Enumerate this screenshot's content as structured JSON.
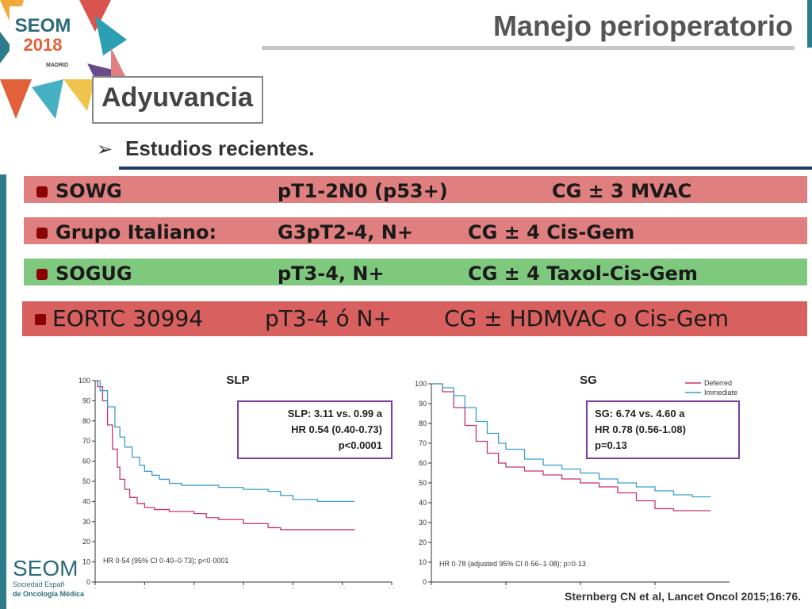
{
  "header": {
    "title": "Manejo perioperatorio",
    "logo_text": "SEOM",
    "logo_year": "2018",
    "logo_city": "MADRID"
  },
  "section": {
    "heading": "Adyuvancia",
    "bullet": "Estudios recientes."
  },
  "trials": [
    {
      "name": "SOWG",
      "population": "pT1-2N0 (p53+)",
      "arms": "CG ± 3 MVAC"
    },
    {
      "name": "Grupo Italiano:",
      "population": "G3pT2-4, N+",
      "arms": "CG ± 4 Cis-Gem"
    },
    {
      "name": "SOGUG",
      "population": "pT3-4, N+",
      "arms": "CG ± 4 Taxol-Cis-Gem"
    },
    {
      "name": "EORTC 30994",
      "population": "pT3-4 ó N+",
      "arms": "CG ± HDMVAC o Cis-Gem"
    }
  ],
  "colors": {
    "deferred": "#c8336e",
    "immediate": "#3b9dd0",
    "band_red": "#e07f7f",
    "band_green": "#7fc97f",
    "band_eortc": "#d8605e",
    "box_border": "#7a3fa0"
  },
  "footer": {
    "reference": "Sternberg CN et al, Lancet Oncol 2015;16:76.",
    "seom_logo": "SEOM",
    "seom_line1": "Sociedad Españ",
    "seom_line2": "de Oncología Médica"
  },
  "chart_data": [
    {
      "type": "line",
      "title": "SLP",
      "xlim": [
        0,
        12
      ],
      "ylim": [
        0,
        100
      ],
      "xticks": [
        "0",
        "2",
        "4",
        "6",
        "8",
        "10",
        "12"
      ],
      "yticks": [
        "0",
        "10",
        "20",
        "30",
        "40",
        "50",
        "60",
        "70",
        "80",
        "90",
        "100"
      ],
      "annotation_box": [
        "SLP: 3.11 vs. 0.99 a",
        "HR 0.54 (0.40-0.73)",
        "p<0.0001"
      ],
      "footnote": "HR 0·54 (95% CI 0·40–0·73); p<0·0001",
      "series": [
        {
          "name": "Deferred",
          "x": [
            0,
            0.1,
            0.3,
            0.5,
            0.7,
            0.9,
            1.0,
            1.2,
            1.4,
            1.7,
            2.0,
            2.4,
            3.0,
            3.5,
            4.0,
            4.5,
            5.0,
            6.0,
            7.0,
            7.5,
            8.0,
            9.0,
            10.0,
            10.5
          ],
          "y": [
            100,
            97,
            90,
            78,
            66,
            57,
            51,
            46,
            42,
            39,
            37,
            36,
            35,
            35,
            34,
            32,
            31,
            29,
            27,
            26,
            26,
            26,
            26,
            26
          ]
        },
        {
          "name": "Immediate",
          "x": [
            0,
            0.2,
            0.5,
            0.8,
            1.0,
            1.2,
            1.5,
            1.8,
            2.0,
            2.3,
            2.6,
            3.0,
            3.5,
            4.0,
            4.5,
            5.0,
            6.0,
            7.0,
            7.5,
            8.0,
            9.0,
            10.0,
            10.5
          ],
          "y": [
            100,
            95,
            87,
            77,
            72,
            67,
            62,
            58,
            55,
            53,
            51,
            49,
            48,
            48,
            48,
            47,
            46,
            45,
            43,
            41,
            40,
            40,
            40
          ]
        }
      ]
    },
    {
      "type": "line",
      "title": "SG",
      "xlim": [
        0,
        8
      ],
      "ylim": [
        0,
        100
      ],
      "xticks": [
        "0",
        "2",
        "4",
        "6"
      ],
      "yticks": [
        "0",
        "10",
        "20",
        "30",
        "40",
        "50",
        "60",
        "70",
        "80",
        "90",
        "100"
      ],
      "legend": "top-right",
      "annotation_box": [
        "SG: 6.74 vs. 4.60 a",
        "HR 0.78 (0.56-1.08)",
        "p=0.13"
      ],
      "footnote": "HR 0·78 (adjusted 95% CI 0·56–1·08); p=0·13",
      "series": [
        {
          "name": "Deferred",
          "x": [
            0,
            0.3,
            0.6,
            0.9,
            1.2,
            1.5,
            1.8,
            2.0,
            2.5,
            3.0,
            3.5,
            4.0,
            4.5,
            5.0,
            5.5,
            6.0,
            6.5,
            7.0,
            7.5
          ],
          "y": [
            100,
            96,
            88,
            79,
            71,
            65,
            60,
            58,
            56,
            54,
            52,
            50,
            48,
            45,
            41,
            37,
            36,
            36,
            36
          ]
        },
        {
          "name": "Immediate",
          "x": [
            0,
            0.3,
            0.6,
            0.9,
            1.2,
            1.5,
            1.8,
            2.0,
            2.5,
            3.0,
            3.5,
            4.0,
            4.5,
            5.0,
            5.5,
            6.0,
            6.5,
            7.0,
            7.5
          ],
          "y": [
            100,
            98,
            94,
            88,
            81,
            75,
            70,
            67,
            62,
            59,
            57,
            55,
            52,
            50,
            48,
            46,
            44,
            43,
            43
          ]
        }
      ]
    }
  ]
}
